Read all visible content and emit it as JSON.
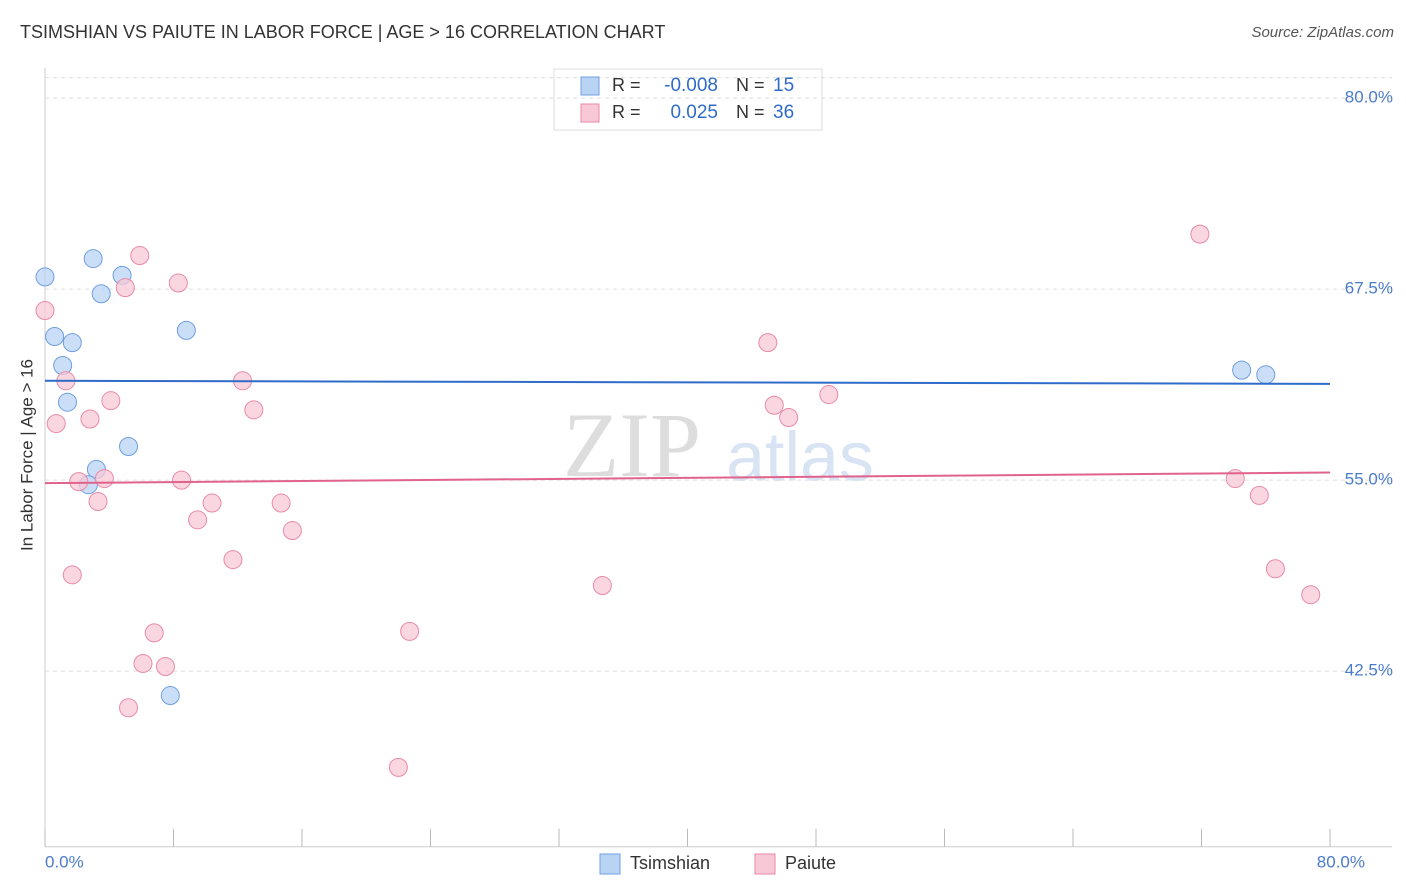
{
  "chart_data": {
    "type": "scatter",
    "title": "TSIMSHIAN VS PAIUTE IN LABOR FORCE | AGE > 16 CORRELATION CHART",
    "source": "Source: ZipAtlas.com",
    "y_label": "In Labor Force | Age > 16",
    "watermark": [
      "ZIP",
      "atlas"
    ],
    "xlim": [
      0,
      80
    ],
    "ylim": [
      31,
      82
    ],
    "xticks": [
      {
        "value": 0,
        "label": "0.0%"
      },
      {
        "value": 80,
        "label": "80.0%"
      }
    ],
    "xminor_ticks": [
      8,
      16,
      24,
      32,
      40,
      48,
      56,
      64,
      72
    ],
    "yticks": [
      {
        "value": 42.5,
        "label": "42.5%"
      },
      {
        "value": 55,
        "label": "55.0%"
      },
      {
        "value": 67.5,
        "label": "67.5%"
      },
      {
        "value": 80,
        "label": "80.0%"
      }
    ],
    "grid": true,
    "legend_labels": {
      "r": "R =",
      "n": "N ="
    },
    "series": [
      {
        "name": "Tsimshian",
        "color": "#6f9fe0",
        "fill": "#b9d3f5",
        "r": -0.008,
        "n": 15,
        "trend": [
          61.5,
          61.3
        ],
        "x": [
          0,
          0.6,
          1.7,
          1.1,
          1.4,
          3.0,
          3.5,
          4.8,
          8.8,
          5.2,
          3.2,
          2.7,
          7.8,
          74.5,
          76.0
        ],
        "values": [
          68.3,
          64.4,
          64.0,
          62.5,
          60.1,
          69.5,
          67.2,
          68.4,
          64.8,
          57.2,
          55.7,
          54.7,
          40.9,
          62.2,
          61.9
        ]
      },
      {
        "name": "Paiute",
        "color": "#e98aa8",
        "fill": "#f8c8d6",
        "r": 0.025,
        "n": 36,
        "trend": [
          54.8,
          55.5
        ],
        "x": [
          0,
          1.3,
          0.7,
          2.8,
          4.1,
          5.9,
          5.0,
          8.3,
          12.3,
          13.0,
          2.1,
          3.7,
          3.3,
          8.5,
          10.4,
          9.5,
          14.7,
          15.4,
          11.7,
          1.7,
          6.8,
          6.1,
          7.5,
          5.2,
          22.0,
          22.7,
          34.7,
          45.0,
          45.4,
          46.3,
          48.8,
          71.9,
          74.1,
          75.6,
          76.6,
          78.8
        ],
        "values": [
          66.1,
          61.5,
          58.7,
          59.0,
          60.2,
          69.7,
          67.6,
          67.9,
          61.5,
          59.6,
          54.9,
          55.1,
          53.6,
          55.0,
          53.5,
          52.4,
          53.5,
          51.7,
          49.8,
          48.8,
          45.0,
          43.0,
          42.8,
          40.1,
          36.2,
          45.1,
          48.1,
          64.0,
          59.9,
          59.1,
          60.6,
          71.1,
          55.1,
          54.0,
          49.2,
          47.5
        ]
      }
    ]
  }
}
